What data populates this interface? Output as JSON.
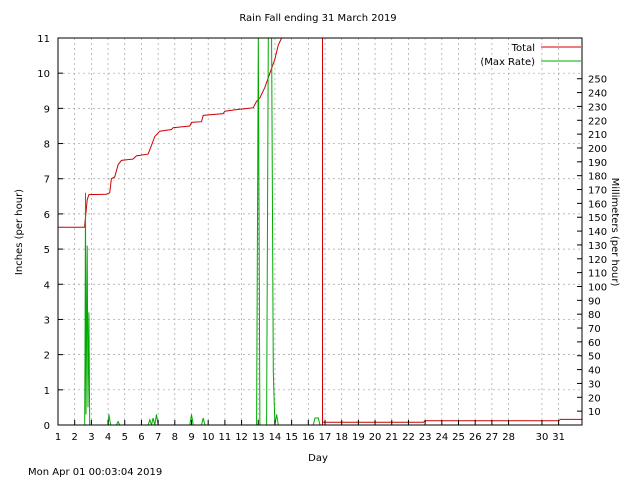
{
  "chart_data": {
    "type": "line",
    "title": "Rain Fall ending 31 March 2019",
    "xlabel": "Day",
    "ylabel": "Inches (per hour)",
    "y2label": "Millimeters (per hour)",
    "xlim": [
      1,
      32.4
    ],
    "ylim": [
      0,
      11
    ],
    "y2lim": [
      0,
      279.4
    ],
    "x_ticks": [
      "1",
      "2",
      "3",
      "4",
      "5",
      "6",
      "7",
      "8",
      "9",
      "10",
      "11",
      "12",
      "13",
      "14",
      "15",
      "16",
      "17",
      "18",
      "19",
      "20",
      "21",
      "22",
      "23",
      "24",
      "25",
      "26",
      "27",
      "28",
      "30",
      "31"
    ],
    "y_ticks": [
      0,
      1,
      2,
      3,
      4,
      5,
      6,
      7,
      8,
      9,
      10,
      11
    ],
    "y2_ticks": [
      10,
      20,
      30,
      40,
      50,
      60,
      70,
      80,
      90,
      100,
      110,
      120,
      130,
      140,
      150,
      160,
      170,
      180,
      190,
      200,
      210,
      220,
      230,
      240,
      250
    ],
    "grid": true,
    "legend_position": "top-right",
    "series": [
      {
        "name": "Total",
        "color": "#cc0000",
        "points": [
          [
            1.0,
            5.62
          ],
          [
            2.6,
            5.62
          ],
          [
            2.6,
            5.67
          ],
          [
            2.65,
            5.9
          ],
          [
            2.75,
            6.4
          ],
          [
            2.85,
            6.55
          ],
          [
            3.9,
            6.56
          ],
          [
            4.1,
            6.6
          ],
          [
            4.2,
            7.0
          ],
          [
            4.4,
            7.05
          ],
          [
            4.6,
            7.4
          ],
          [
            4.8,
            7.52
          ],
          [
            5.5,
            7.56
          ],
          [
            5.7,
            7.65
          ],
          [
            6.4,
            7.7
          ],
          [
            6.6,
            7.95
          ],
          [
            6.8,
            8.2
          ],
          [
            7.1,
            8.35
          ],
          [
            7.8,
            8.4
          ],
          [
            7.9,
            8.45
          ],
          [
            8.9,
            8.5
          ],
          [
            9.0,
            8.6
          ],
          [
            9.6,
            8.62
          ],
          [
            9.7,
            8.8
          ],
          [
            10.9,
            8.85
          ],
          [
            11.0,
            8.92
          ],
          [
            11.8,
            8.97
          ],
          [
            12.2,
            8.99
          ],
          [
            12.7,
            9.02
          ],
          [
            12.9,
            9.2
          ],
          [
            13.1,
            9.3
          ],
          [
            13.4,
            9.6
          ],
          [
            13.7,
            10.0
          ],
          [
            14.0,
            10.4
          ],
          [
            14.2,
            10.8
          ],
          [
            14.4,
            11.0
          ]
        ]
      },
      {
        "name": "(Max Rate)",
        "color": "#00aa00",
        "points": [
          [
            1.0,
            0
          ],
          [
            2.6,
            0
          ],
          [
            2.62,
            2
          ],
          [
            2.65,
            6.6
          ],
          [
            2.68,
            0.3
          ],
          [
            2.75,
            5.1
          ],
          [
            2.8,
            0.5
          ],
          [
            2.85,
            3.2
          ],
          [
            2.9,
            0
          ],
          [
            4.0,
            0
          ],
          [
            4.05,
            0.3
          ],
          [
            4.15,
            0
          ],
          [
            4.5,
            0
          ],
          [
            4.6,
            0.1
          ],
          [
            4.7,
            0
          ],
          [
            6.4,
            0
          ],
          [
            6.5,
            0.15
          ],
          [
            6.6,
            0
          ],
          [
            6.7,
            0.2
          ],
          [
            6.8,
            0
          ],
          [
            6.9,
            0.3
          ],
          [
            7.0,
            0
          ],
          [
            8.9,
            0
          ],
          [
            9.0,
            0.3
          ],
          [
            9.1,
            0
          ],
          [
            9.6,
            0
          ],
          [
            9.7,
            0.2
          ],
          [
            9.8,
            0
          ],
          [
            12.9,
            0
          ],
          [
            13.0,
            11.0
          ],
          [
            13.1,
            0
          ],
          [
            13.5,
            0
          ],
          [
            13.6,
            11.0
          ],
          [
            13.8,
            11.0
          ],
          [
            13.9,
            1.5
          ],
          [
            14.0,
            0
          ],
          [
            14.1,
            0.3
          ],
          [
            14.2,
            0
          ],
          [
            16.3,
            0
          ],
          [
            16.4,
            0.2
          ],
          [
            16.6,
            0.2
          ],
          [
            16.7,
            0
          ],
          [
            32.4,
            0
          ]
        ]
      }
    ],
    "marker": {
      "x": 16.85,
      "color": "#cc0000"
    },
    "tail": {
      "color": "#cc0000",
      "points": [
        [
          16.85,
          0.08
        ],
        [
          22.9,
          0.08
        ],
        [
          23.0,
          0.12
        ],
        [
          31.0,
          0.12
        ],
        [
          31.1,
          0.16
        ],
        [
          32.4,
          0.16
        ]
      ]
    }
  },
  "footer": {
    "timestamp": "Mon Apr 01 00:03:04 2019"
  }
}
